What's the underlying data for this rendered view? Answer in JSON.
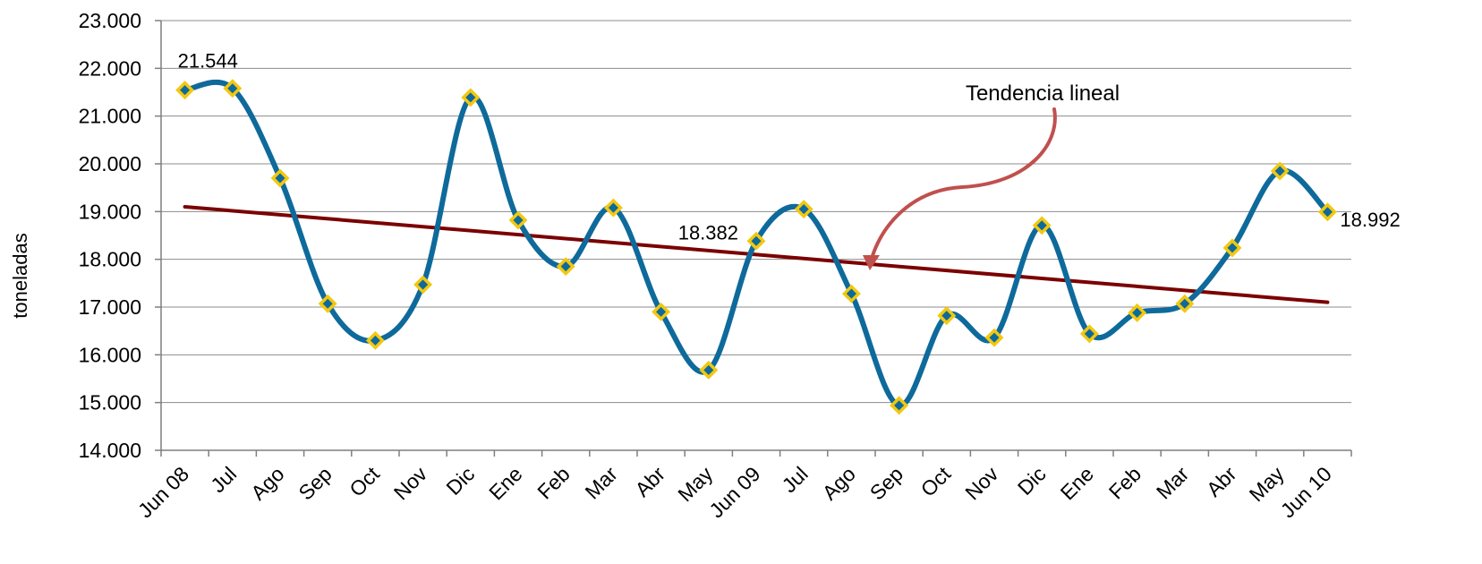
{
  "chart_data": {
    "type": "line",
    "ylabel": "toneladas",
    "ylim": [
      14000,
      23000
    ],
    "yticks": [
      "14.000",
      "15.000",
      "16.000",
      "17.000",
      "18.000",
      "19.000",
      "20.000",
      "21.000",
      "22.000",
      "23.000"
    ],
    "grid": true,
    "categories": [
      "Jun 08",
      "Jul",
      "Ago",
      "Sep",
      "Oct",
      "Nov",
      "Dic",
      "Ene",
      "Feb",
      "Mar",
      "Abr",
      "May",
      "Jun 09",
      "Jul",
      "Ago",
      "Sep",
      "Oct",
      "Nov",
      "Dic",
      "Ene",
      "Feb",
      "Mar",
      "Abr",
      "May",
      "Jun 10"
    ],
    "series": [
      {
        "values": [
          21544,
          21580,
          19700,
          17070,
          16300,
          17470,
          21390,
          18820,
          17850,
          19080,
          16900,
          15680,
          18382,
          19050,
          17280,
          14940,
          16820,
          16360,
          18710,
          16440,
          16880,
          17070,
          18240,
          19850,
          18992
        ],
        "color": "#0e6a9b",
        "marker": "diamond",
        "marker_fill": "#0e6a9b",
        "marker_edge": "#f2c811"
      }
    ],
    "trendline": {
      "start": 19100,
      "end": 17100,
      "color": "#7b0000"
    },
    "data_labels": [
      {
        "index": 0,
        "text": "21.544"
      },
      {
        "index": 12,
        "text": "18.382"
      },
      {
        "index": 24,
        "text": "18.992"
      }
    ],
    "annotations": [
      {
        "text": "Tendencia lineal",
        "arrow_color": "#c0504d"
      }
    ]
  }
}
